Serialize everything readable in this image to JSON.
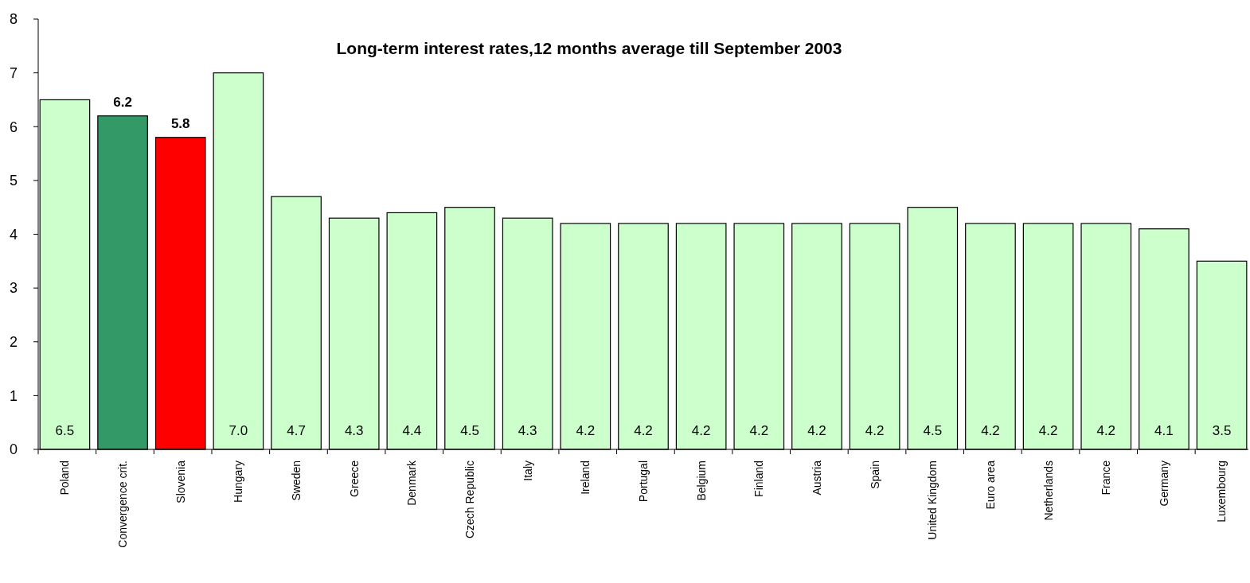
{
  "chart_data": {
    "type": "bar",
    "title": "Long-term interest rates,12 months average till September 2003",
    "categories": [
      "Poland",
      "Convergence crit.",
      "Slovenia",
      "Hungary",
      "Sweden",
      "Greece",
      "Denmark",
      "Czech Republic",
      "Italy",
      "Ireland",
      "Portugal",
      "Belgium",
      "Finland",
      "Austria",
      "Spain",
      "United Kingdom",
      "Euro area",
      "Netherlands",
      "France",
      "Germany",
      "Luxembourg"
    ],
    "values": [
      6.5,
      6.2,
      5.8,
      7.0,
      4.7,
      4.3,
      4.4,
      4.5,
      4.3,
      4.2,
      4.2,
      4.2,
      4.2,
      4.2,
      4.2,
      4.5,
      4.2,
      4.2,
      4.2,
      4.1,
      3.5
    ],
    "colors": [
      "#ccffcc",
      "#339966",
      "#ff0000",
      "#ccffcc",
      "#ccffcc",
      "#ccffcc",
      "#ccffcc",
      "#ccffcc",
      "#ccffcc",
      "#ccffcc",
      "#ccffcc",
      "#ccffcc",
      "#ccffcc",
      "#ccffcc",
      "#ccffcc",
      "#ccffcc",
      "#ccffcc",
      "#ccffcc",
      "#ccffcc",
      "#ccffcc",
      "#ccffcc"
    ],
    "value_labels": [
      "6.5",
      "6.2",
      "5.8",
      "7.0",
      "4.7",
      "4.3",
      "4.4",
      "4.5",
      "4.3",
      "4.2",
      "4.2",
      "4.2",
      "4.2",
      "4.2",
      "4.2",
      "4.5",
      "4.2",
      "4.2",
      "4.2",
      "4.1",
      "3.5"
    ],
    "ylim": [
      0,
      8
    ],
    "yticks": [
      0,
      1,
      2,
      3,
      4,
      5,
      6,
      7,
      8
    ],
    "grid": false
  }
}
